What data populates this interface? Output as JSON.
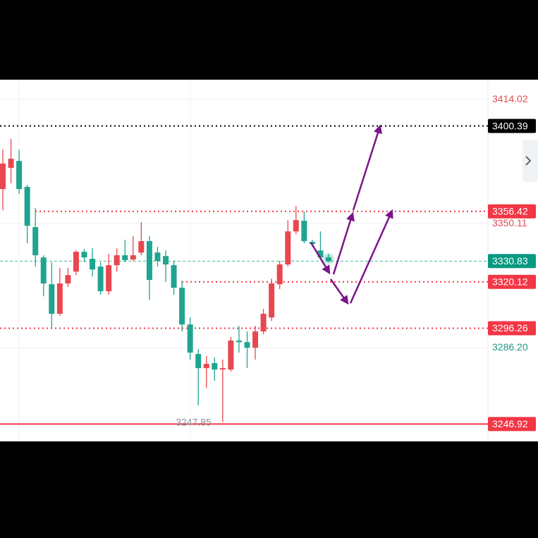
{
  "chart_data": {
    "type": "candlestick",
    "up_color": "#e8474f",
    "down_color": "#1fa58f",
    "open": [
      3367.9,
      3378.8,
      3382.4,
      3369.0,
      3348.3,
      3332.7,
      3318.9,
      3303.7,
      3319.3,
      3325.4,
      3335.6,
      3332.0,
      3328.0,
      3315.3,
      3328.7,
      3333.8,
      3331.6,
      3335.2,
      3341.1,
      3335.2,
      3333.4,
      3328.7,
      3317.1,
      3298.2,
      3283.0,
      3275.7,
      3278.3,
      3275.0,
      3275.0,
      3289.9,
      3289.1,
      3286.2,
      3294.6,
      3301.8,
      3318.9,
      3329.1,
      3346.1,
      3351.6,
      3340.7,
      3336.3,
      3332.7
    ],
    "high": [
      3388.2,
      3393.7,
      3388.2,
      3370.1,
      3358.1,
      3333.8,
      3330.2,
      3327.3,
      3327.3,
      3336.3,
      3337.1,
      3337.4,
      3330.2,
      3334.5,
      3337.4,
      3341.8,
      3343.6,
      3350.9,
      3343.6,
      3338.1,
      3336.3,
      3330.9,
      3320.7,
      3301.8,
      3285.5,
      3281.9,
      3281.2,
      3280.1,
      3291.7,
      3297.5,
      3294.6,
      3297.5,
      3306.2,
      3321.8,
      3330.9,
      3351.9,
      3359.2,
      3356.3,
      3341.8,
      3346.1,
      3334.5
    ],
    "low": [
      3357.0,
      3370.8,
      3365.4,
      3340.0,
      3328.0,
      3312.7,
      3296.4,
      3302.6,
      3317.5,
      3323.6,
      3330.2,
      3322.9,
      3313.5,
      3313.5,
      3325.4,
      3330.2,
      3330.9,
      3333.8,
      3310.9,
      3328.0,
      3320.0,
      3313.5,
      3294.6,
      3280.1,
      3256.5,
      3265.5,
      3269.2,
      3247.85,
      3273.9,
      3283.7,
      3275.7,
      3280.1,
      3293.1,
      3300.0,
      3316.4,
      3328.0,
      3344.7,
      3340.0,
      3338.1,
      3331.6,
      3330.2
    ],
    "close": [
      3381.0,
      3383.5,
      3367.9,
      3349.0,
      3333.8,
      3319.3,
      3303.7,
      3319.3,
      3323.6,
      3335.6,
      3332.7,
      3326.5,
      3315.3,
      3328.7,
      3333.8,
      3331.3,
      3333.8,
      3341.1,
      3321.1,
      3330.9,
      3329.1,
      3317.1,
      3298.2,
      3283.7,
      3275.7,
      3277.9,
      3275.0,
      3275.7,
      3289.9,
      3289.1,
      3286.2,
      3294.6,
      3303.7,
      3319.3,
      3329.1,
      3346.1,
      3351.9,
      3341.1,
      3339.6,
      3332.7,
      3330.83
    ],
    "ylim": [
      3238.0,
      3424.2
    ],
    "yticks": [
      3414.02,
      3350.11,
      {
        "value": 3286.2,
        "label": "3286.20"
      }
    ],
    "ytick_colors": [
      "#e04b53",
      "#e04b53",
      "#1f9a86"
    ],
    "grid": true,
    "levels": [
      {
        "value": 3400.39,
        "color": "#000000",
        "style": "dotted"
      },
      {
        "value": 3356.42,
        "color": "#f23645",
        "style": "dotted"
      },
      {
        "value": 3330.83,
        "color": "#089981",
        "style": "dashed"
      },
      {
        "value": 3320.12,
        "color": "#f23645",
        "style": "dotted"
      },
      {
        "value": 3296.26,
        "color": "#f23645",
        "style": "dotted"
      },
      {
        "value": 3246.92,
        "color": "#f23645",
        "style": "solid"
      }
    ]
  }
}
